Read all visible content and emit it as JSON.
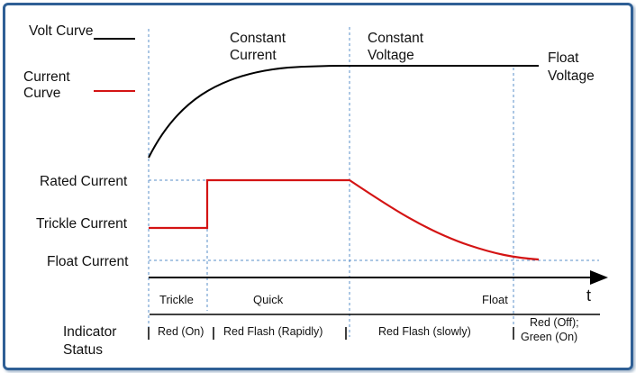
{
  "legend": {
    "volt_label": "Volt Curve",
    "current_label_line1": "Current",
    "current_label_line2": "Curve"
  },
  "phases_top": {
    "cc_line1": "Constant",
    "cc_line2": "Current",
    "cv_line1": "Constant",
    "cv_line2": "Voltage",
    "float_line1": "Float",
    "float_line2": "Voltage"
  },
  "levels": {
    "rated": "Rated  Current",
    "trickle": "Trickle  Current",
    "float": "Float  Current"
  },
  "axis": {
    "time_label": "t"
  },
  "stages": {
    "trickle": "Trickle",
    "quick": "Quick",
    "float": "Float"
  },
  "indicator": {
    "title_line1": "Indicator",
    "title_line2": "Status",
    "trickle": "Red (On)",
    "quick": "Red Flash (Rapidly)",
    "slow": "Red Flash (slowly)",
    "float_line1": "Red (Off);",
    "float_line2": "Green (On)"
  },
  "colors": {
    "volt_curve": "#000000",
    "current_curve": "#d41414",
    "guide": "#5a8fc8",
    "frame": "#2f5f95"
  }
}
